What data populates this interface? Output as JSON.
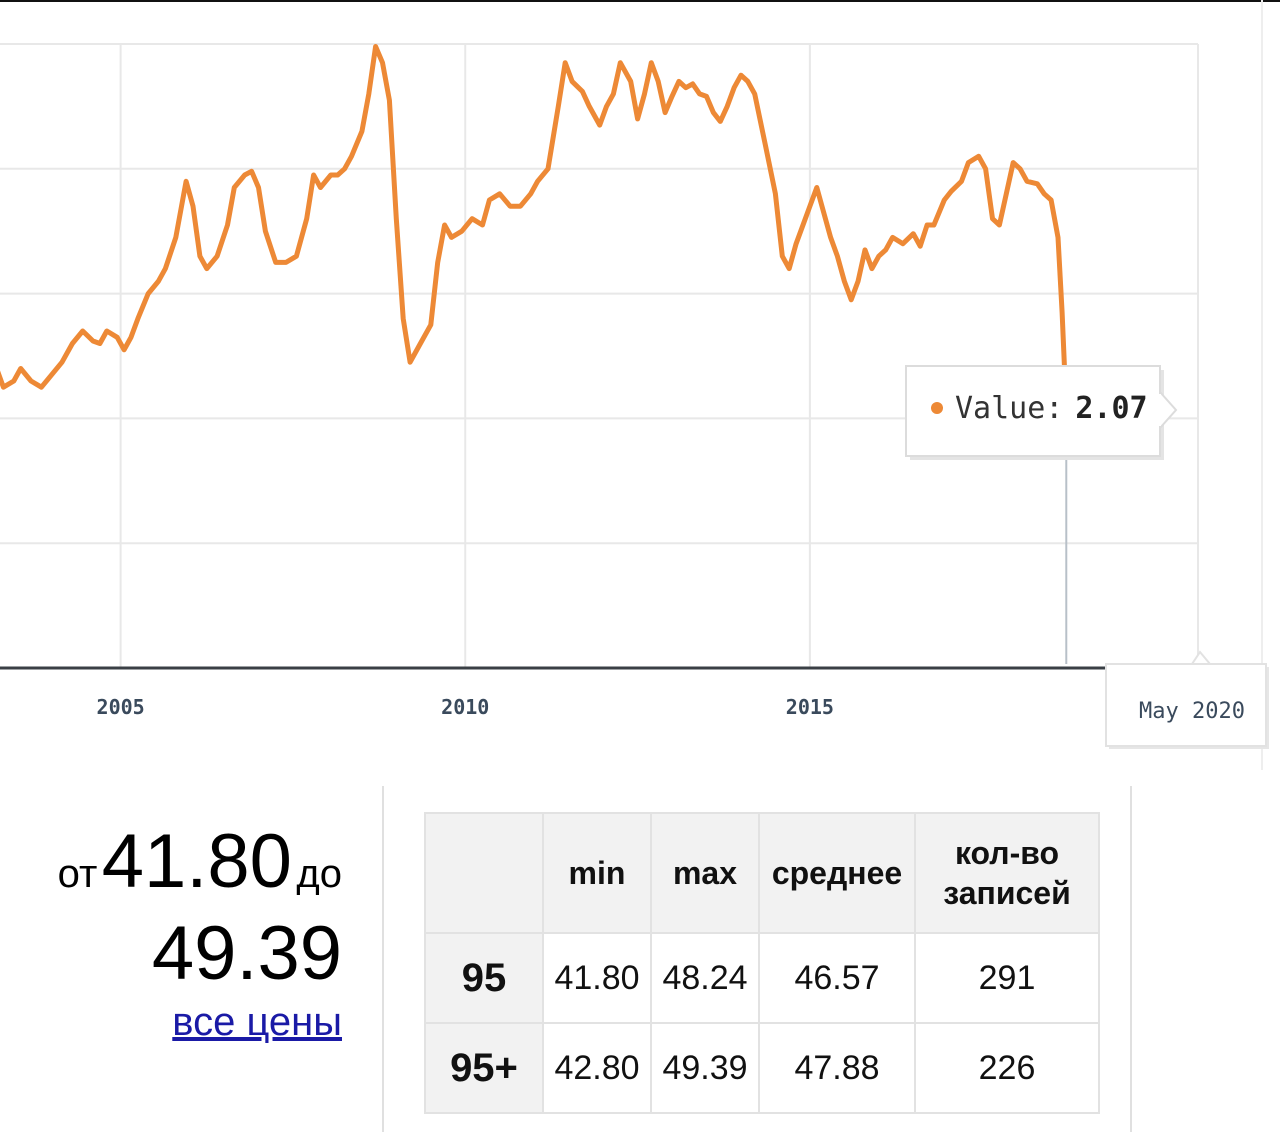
{
  "chart_data": {
    "type": "line",
    "x_tick_labels": [
      "2005",
      "2010",
      "2015"
    ],
    "x_tick_years": [
      2005,
      2010,
      2015
    ],
    "xlim": [
      2003.25,
      2020.66
    ],
    "ylim": [
      0.0,
      5.0
    ],
    "grid": true,
    "legend": "none",
    "color": "#ed8936",
    "tooltip": {
      "label": "Value:",
      "value": "2.07"
    },
    "crosshair_label": "May 2020",
    "series": [
      {
        "values": [
          [
            2003.2,
            2.4
          ],
          [
            2003.3,
            2.25
          ],
          [
            2003.45,
            2.3
          ],
          [
            2003.55,
            2.4
          ],
          [
            2003.7,
            2.3
          ],
          [
            2003.85,
            2.25
          ],
          [
            2004.0,
            2.35
          ],
          [
            2004.15,
            2.45
          ],
          [
            2004.3,
            2.6
          ],
          [
            2004.45,
            2.7
          ],
          [
            2004.6,
            2.62
          ],
          [
            2004.7,
            2.6
          ],
          [
            2004.8,
            2.7
          ],
          [
            2004.95,
            2.65
          ],
          [
            2005.05,
            2.55
          ],
          [
            2005.15,
            2.65
          ],
          [
            2005.25,
            2.8
          ],
          [
            2005.4,
            3.0
          ],
          [
            2005.55,
            3.1
          ],
          [
            2005.65,
            3.2
          ],
          [
            2005.8,
            3.45
          ],
          [
            2005.95,
            3.9
          ],
          [
            2006.05,
            3.7
          ],
          [
            2006.15,
            3.3
          ],
          [
            2006.25,
            3.2
          ],
          [
            2006.4,
            3.3
          ],
          [
            2006.55,
            3.55
          ],
          [
            2006.65,
            3.85
          ],
          [
            2006.8,
            3.95
          ],
          [
            2006.9,
            3.98
          ],
          [
            2007.0,
            3.85
          ],
          [
            2007.1,
            3.5
          ],
          [
            2007.25,
            3.25
          ],
          [
            2007.4,
            3.25
          ],
          [
            2007.55,
            3.3
          ],
          [
            2007.7,
            3.6
          ],
          [
            2007.8,
            3.95
          ],
          [
            2007.9,
            3.85
          ],
          [
            2008.05,
            3.95
          ],
          [
            2008.15,
            3.95
          ],
          [
            2008.25,
            4.0
          ],
          [
            2008.35,
            4.1
          ],
          [
            2008.5,
            4.3
          ],
          [
            2008.6,
            4.6
          ],
          [
            2008.7,
            4.98
          ],
          [
            2008.8,
            4.85
          ],
          [
            2008.9,
            4.55
          ],
          [
            2009.0,
            3.6
          ],
          [
            2009.1,
            2.8
          ],
          [
            2009.2,
            2.45
          ],
          [
            2009.35,
            2.6
          ],
          [
            2009.5,
            2.75
          ],
          [
            2009.6,
            3.25
          ],
          [
            2009.7,
            3.55
          ],
          [
            2009.8,
            3.45
          ],
          [
            2009.95,
            3.5
          ],
          [
            2010.1,
            3.6
          ],
          [
            2010.25,
            3.55
          ],
          [
            2010.35,
            3.75
          ],
          [
            2010.5,
            3.8
          ],
          [
            2010.65,
            3.7
          ],
          [
            2010.8,
            3.7
          ],
          [
            2010.95,
            3.8
          ],
          [
            2011.05,
            3.9
          ],
          [
            2011.2,
            4.0
          ],
          [
            2011.35,
            4.5
          ],
          [
            2011.45,
            4.85
          ],
          [
            2011.55,
            4.7
          ],
          [
            2011.7,
            4.62
          ],
          [
            2011.8,
            4.5
          ],
          [
            2011.95,
            4.35
          ],
          [
            2012.05,
            4.5
          ],
          [
            2012.15,
            4.6
          ],
          [
            2012.25,
            4.85
          ],
          [
            2012.4,
            4.7
          ],
          [
            2012.5,
            4.4
          ],
          [
            2012.6,
            4.6
          ],
          [
            2012.7,
            4.85
          ],
          [
            2012.8,
            4.7
          ],
          [
            2012.9,
            4.45
          ],
          [
            2013.0,
            4.58
          ],
          [
            2013.1,
            4.7
          ],
          [
            2013.2,
            4.65
          ],
          [
            2013.3,
            4.68
          ],
          [
            2013.4,
            4.6
          ],
          [
            2013.5,
            4.58
          ],
          [
            2013.6,
            4.45
          ],
          [
            2013.7,
            4.38
          ],
          [
            2013.8,
            4.5
          ],
          [
            2013.9,
            4.65
          ],
          [
            2014.0,
            4.75
          ],
          [
            2014.1,
            4.7
          ],
          [
            2014.2,
            4.6
          ],
          [
            2014.35,
            4.2
          ],
          [
            2014.5,
            3.8
          ],
          [
            2014.6,
            3.3
          ],
          [
            2014.7,
            3.2
          ],
          [
            2014.8,
            3.4
          ],
          [
            2014.9,
            3.55
          ],
          [
            2015.0,
            3.7
          ],
          [
            2015.1,
            3.85
          ],
          [
            2015.2,
            3.65
          ],
          [
            2015.3,
            3.45
          ],
          [
            2015.4,
            3.3
          ],
          [
            2015.5,
            3.1
          ],
          [
            2015.6,
            2.95
          ],
          [
            2015.7,
            3.1
          ],
          [
            2015.8,
            3.35
          ],
          [
            2015.9,
            3.2
          ],
          [
            2016.0,
            3.3
          ],
          [
            2016.1,
            3.35
          ],
          [
            2016.2,
            3.45
          ],
          [
            2016.35,
            3.4
          ],
          [
            2016.5,
            3.48
          ],
          [
            2016.6,
            3.38
          ],
          [
            2016.7,
            3.55
          ],
          [
            2016.8,
            3.55
          ],
          [
            2016.95,
            3.75
          ],
          [
            2017.05,
            3.82
          ],
          [
            2017.2,
            3.9
          ],
          [
            2017.3,
            4.05
          ],
          [
            2017.45,
            4.1
          ],
          [
            2017.55,
            4.0
          ],
          [
            2017.65,
            3.6
          ],
          [
            2017.75,
            3.55
          ],
          [
            2017.85,
            3.8
          ],
          [
            2017.95,
            4.05
          ],
          [
            2018.05,
            4.0
          ],
          [
            2018.15,
            3.9
          ],
          [
            2018.3,
            3.88
          ],
          [
            2018.4,
            3.8
          ],
          [
            2018.5,
            3.75
          ],
          [
            2018.6,
            3.45
          ],
          [
            2018.66,
            2.85
          ],
          [
            2018.72,
            2.07
          ]
        ]
      }
    ]
  },
  "price_range": {
    "from_word": "от",
    "from_value": "41.80",
    "to_word": "до",
    "to_value": "49.39",
    "all_prices_link": "все цены"
  },
  "stats_table": {
    "headers": [
      "",
      "min",
      "max",
      "среднее",
      "кол-во\nзаписей"
    ],
    "rows": [
      {
        "label": "95",
        "min": "41.80",
        "max": "48.24",
        "avg": "46.57",
        "count": "291"
      },
      {
        "label": "95+",
        "min": "42.80",
        "max": "49.39",
        "avg": "47.88",
        "count": "226"
      }
    ]
  }
}
